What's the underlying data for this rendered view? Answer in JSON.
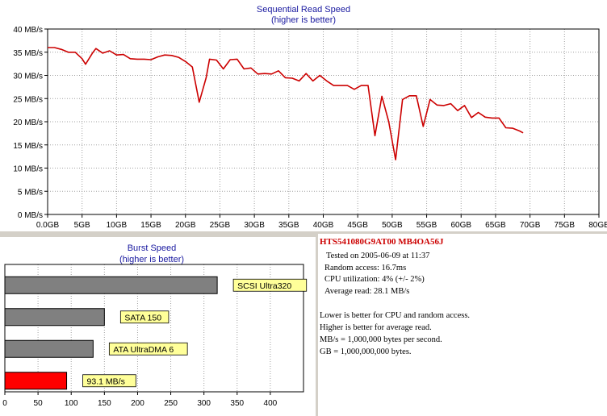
{
  "chart_data": [
    {
      "type": "line",
      "title": "Sequential Read Speed",
      "subtitle": "(higher is better)",
      "xlabel": "",
      "ylabel": "",
      "grid": true,
      "xlim": [
        0,
        80
      ],
      "ylim": [
        0,
        40
      ],
      "x_ticks": [
        "0.0GB",
        "5GB",
        "10GB",
        "15GB",
        "20GB",
        "25GB",
        "30GB",
        "35GB",
        "40GB",
        "45GB",
        "50GB",
        "55GB",
        "60GB",
        "65GB",
        "70GB",
        "75GB",
        "80GB"
      ],
      "y_ticks": [
        "0 MB/s",
        "5 MB/s",
        "10 MB/s",
        "15 MB/s",
        "20 MB/s",
        "25 MB/s",
        "30 MB/s",
        "35 MB/s",
        "40 MB/s"
      ],
      "series": [
        {
          "color": "#cc0000",
          "points": [
            [
              0,
              36.0
            ],
            [
              1,
              36.0
            ],
            [
              2,
              35.6
            ],
            [
              3,
              35.0
            ],
            [
              4,
              35.0
            ],
            [
              5,
              33.6
            ],
            [
              5.5,
              32.4
            ],
            [
              6.5,
              34.8
            ],
            [
              7,
              35.8
            ],
            [
              8,
              34.8
            ],
            [
              9,
              35.3
            ],
            [
              10,
              34.4
            ],
            [
              11,
              34.5
            ],
            [
              12,
              33.6
            ],
            [
              13,
              33.5
            ],
            [
              14,
              33.5
            ],
            [
              15,
              33.4
            ],
            [
              16,
              34.0
            ],
            [
              17,
              34.4
            ],
            [
              18,
              34.3
            ],
            [
              19,
              33.9
            ],
            [
              20,
              33.0
            ],
            [
              21,
              31.8
            ],
            [
              22,
              24.2
            ],
            [
              23,
              29.5
            ],
            [
              23.5,
              33.5
            ],
            [
              24.5,
              33.3
            ],
            [
              25.5,
              31.4
            ],
            [
              26.5,
              33.4
            ],
            [
              27.5,
              33.5
            ],
            [
              28.5,
              31.4
            ],
            [
              29.5,
              31.6
            ],
            [
              30.5,
              30.3
            ],
            [
              31.5,
              30.4
            ],
            [
              32.5,
              30.3
            ],
            [
              33.5,
              31.0
            ],
            [
              34.5,
              29.5
            ],
            [
              35.5,
              29.4
            ],
            [
              36.5,
              28.8
            ],
            [
              37.5,
              30.4
            ],
            [
              38.5,
              28.8
            ],
            [
              39.5,
              30.0
            ],
            [
              40.5,
              28.8
            ],
            [
              41.5,
              27.8
            ],
            [
              42.5,
              27.8
            ],
            [
              43.5,
              27.8
            ],
            [
              44.5,
              27.0
            ],
            [
              45.5,
              27.8
            ],
            [
              46.5,
              27.8
            ],
            [
              47.5,
              17.0
            ],
            [
              48.5,
              25.5
            ],
            [
              49.5,
              20.0
            ],
            [
              50.5,
              11.8
            ],
            [
              51.5,
              24.8
            ],
            [
              52.5,
              25.6
            ],
            [
              53.5,
              25.6
            ],
            [
              54.5,
              19.0
            ],
            [
              55.5,
              24.8
            ],
            [
              56.5,
              23.6
            ],
            [
              57.5,
              23.5
            ],
            [
              58.5,
              23.9
            ],
            [
              59.5,
              22.4
            ],
            [
              60.5,
              23.5
            ],
            [
              61.5,
              20.9
            ],
            [
              62.5,
              22.0
            ],
            [
              63.5,
              21.0
            ],
            [
              64.5,
              20.8
            ],
            [
              65.5,
              20.8
            ],
            [
              66.5,
              18.7
            ],
            [
              67.5,
              18.6
            ],
            [
              68.5,
              18.0
            ],
            [
              69,
              17.6
            ]
          ]
        }
      ]
    },
    {
      "type": "bar",
      "orientation": "horizontal",
      "title": "Burst Speed",
      "subtitle": "(higher is better)",
      "xlim": [
        0,
        450
      ],
      "x_ticks": [
        "0",
        "50",
        "100",
        "150",
        "200",
        "250",
        "300",
        "350",
        "400"
      ],
      "bars": [
        {
          "value": 320,
          "label": "SCSI Ultra320",
          "color": "#808080"
        },
        {
          "value": 150,
          "label": "SATA 150",
          "color": "#808080"
        },
        {
          "value": 133,
          "label": "ATA UltraDMA 6",
          "color": "#808080"
        },
        {
          "value": 93.1,
          "label": "93.1 MB/s",
          "color": "#ff0000"
        }
      ]
    }
  ],
  "colors": {
    "accent": "#cc0000",
    "title_text": "#1a1aa0",
    "label_box": "#ffff99",
    "panel": "#d4d0c8",
    "grid": "#a0a0a0"
  },
  "info": {
    "drive": "HTS541080G9AT00 MB4OA56J",
    "tested": "Tested on 2005-06-09 at 11:37",
    "random_access": "Random access: 16.7ms",
    "cpu": "CPU utilization: 4% (+/- 2%)",
    "avg_read": "Average read: 28.1 MB/s",
    "note1": "Lower is better for CPU and random access.",
    "note2": "Higher is better for average read.",
    "note3": "MB/s = 1,000,000 bytes per second.",
    "note4": "GB = 1,000,000,000 bytes."
  }
}
